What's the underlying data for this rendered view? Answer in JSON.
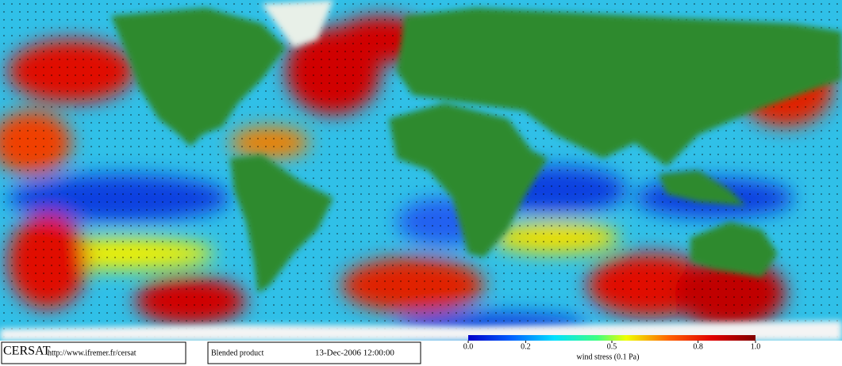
{
  "branding": {
    "name": "CERSAT",
    "url": "http://www.ifremer.fr/cersat"
  },
  "product": "Blended product",
  "timestamp": "13-Dec-2006 12:00:00",
  "colorbar": {
    "title": "wind stress (0.1 Pa)",
    "range": [
      0,
      1
    ],
    "ticks": [
      {
        "value": 0,
        "label": "0.0"
      },
      0.2,
      0.5,
      0.8,
      {
        "value": 1,
        "label": "1.0"
      }
    ]
  }
}
